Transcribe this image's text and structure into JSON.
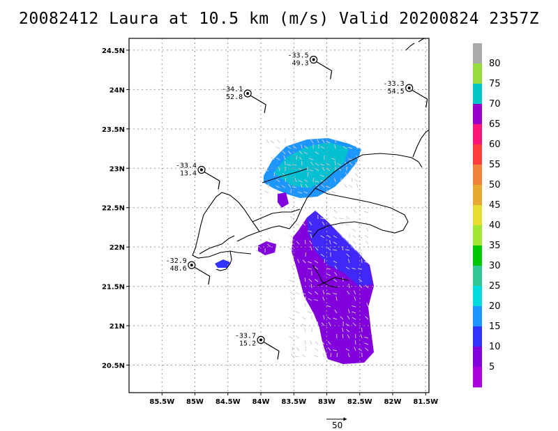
{
  "title": "20082412 Laura at 10.5 km (m/s) Valid 20200824 2357Z",
  "map": {
    "x_ticks": [
      "85.5W",
      "85W",
      "84.5W",
      "84W",
      "83.5W",
      "83W",
      "82.5W",
      "82W",
      "81.5W"
    ],
    "y_ticks": [
      "24.5N",
      "24N",
      "23.5N",
      "23N",
      "22.5N",
      "22N",
      "21.5N",
      "21N",
      "20.5N"
    ],
    "grid": true
  },
  "observations": [
    {
      "lon": -83.2,
      "lat": 24.38,
      "top": "-33.5",
      "bottom": "49.3"
    },
    {
      "lon": -84.2,
      "lat": 23.95,
      "top": "-34.1",
      "bottom": "52.8"
    },
    {
      "lon": -81.75,
      "lat": 24.02,
      "top": "-33.3",
      "bottom": "54.5"
    },
    {
      "lon": -84.9,
      "lat": 22.98,
      "top": "-33.4",
      "bottom": "13.4"
    },
    {
      "lon": -85.05,
      "lat": 21.77,
      "top": "-32.9",
      "bottom": "48.6"
    },
    {
      "lon": -84.0,
      "lat": 20.82,
      "top": "-33.7",
      "bottom": "15.2"
    }
  ],
  "colorbar": {
    "labels": [
      "80",
      "75",
      "70",
      "65",
      "60",
      "55",
      "50",
      "45",
      "40",
      "35",
      "30",
      "25",
      "20",
      "15",
      "10",
      "5"
    ],
    "colors": [
      "#aaaaaa",
      "#96dc3c",
      "#00c8c8",
      "#9600c8",
      "#ff1478",
      "#ff3c3c",
      "#f0823c",
      "#e6aa32",
      "#e6dc32",
      "#a0e632",
      "#00c800",
      "#32c896",
      "#00dcdc",
      "#1e96ff",
      "#3232ff",
      "#8200dc",
      "#aa00dc"
    ]
  },
  "reference_vector": {
    "label": "50"
  }
}
